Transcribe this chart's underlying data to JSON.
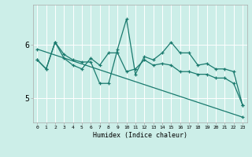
{
  "xlabel": "Humidex (Indice chaleur)",
  "background_color": "#cceee8",
  "line_color": "#1a7a6e",
  "grid_color": "#ffffff",
  "x": [
    0,
    1,
    2,
    3,
    4,
    5,
    6,
    7,
    8,
    9,
    10,
    11,
    12,
    13,
    14,
    15,
    16,
    17,
    18,
    19,
    20,
    21,
    22,
    23
  ],
  "series1": [
    5.72,
    5.55,
    6.05,
    5.82,
    5.72,
    5.68,
    5.68,
    5.28,
    5.28,
    5.92,
    6.48,
    5.45,
    5.78,
    5.72,
    5.85,
    6.05,
    5.85,
    5.85,
    5.62,
    5.65,
    5.55,
    5.55,
    5.5,
    4.88
  ],
  "series2": [
    5.72,
    5.55,
    6.05,
    5.75,
    5.62,
    5.55,
    5.75,
    5.62,
    5.85,
    5.85,
    5.5,
    5.55,
    5.72,
    5.62,
    5.65,
    5.62,
    5.5,
    5.5,
    5.45,
    5.45,
    5.38,
    5.38,
    5.28,
    4.88
  ],
  "series3_x": [
    0,
    23
  ],
  "series3_y": [
    5.92,
    4.65
  ],
  "ylim": [
    4.55,
    6.75
  ],
  "xlim": [
    -0.5,
    23.5
  ],
  "yticks": [
    5,
    6
  ],
  "xticks": [
    0,
    1,
    2,
    3,
    4,
    5,
    6,
    7,
    8,
    9,
    10,
    11,
    12,
    13,
    14,
    15,
    16,
    17,
    18,
    19,
    20,
    21,
    22,
    23
  ]
}
